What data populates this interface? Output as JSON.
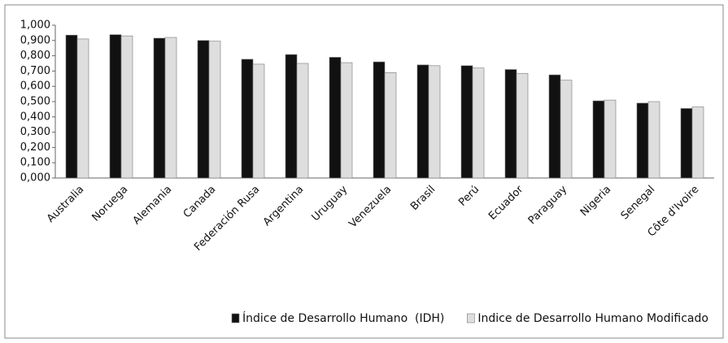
{
  "chart_data": {
    "type": "bar",
    "categories": [
      "Australia",
      "Noruega",
      "Alemania",
      "Canada",
      "Federación Rusa",
      "Argentina",
      "Uruguay",
      "Venezuela",
      "Brasil",
      "Perú",
      "Ecuador",
      "Paraguay",
      "Nigeria",
      "Senegal",
      "Côte d'Ivoire"
    ],
    "series": [
      {
        "name": "Índice de Desarrollo Humano  (IDH)",
        "color": "#111111",
        "values": [
          0.935,
          0.938,
          0.915,
          0.9,
          0.777,
          0.808,
          0.79,
          0.76,
          0.74,
          0.735,
          0.71,
          0.675,
          0.505,
          0.49,
          0.455
        ]
      },
      {
        "name": "Indice de Desarrollo Humano Modificado",
        "color": "#dedede",
        "values": [
          0.91,
          0.93,
          0.92,
          0.895,
          0.745,
          0.75,
          0.755,
          0.69,
          0.735,
          0.72,
          0.685,
          0.64,
          0.51,
          0.5,
          0.465
        ]
      }
    ],
    "ylim": [
      0,
      1
    ],
    "yticks": [
      {
        "value": 0,
        "label": "0,000"
      },
      {
        "value": 0.1,
        "label": "0,100"
      },
      {
        "value": 0.2,
        "label": "0,200"
      },
      {
        "value": 0.3,
        "label": "0,300"
      },
      {
        "value": 0.4,
        "label": "0,400"
      },
      {
        "value": 0.5,
        "label": "0,500"
      },
      {
        "value": 0.6,
        "label": "0,600"
      },
      {
        "value": 0.7,
        "label": "0,700"
      },
      {
        "value": 0.8,
        "label": "0,800"
      },
      {
        "value": 0.9,
        "label": "0,900"
      },
      {
        "value": 1,
        "label": "1,000"
      }
    ],
    "grid": false,
    "legend": "bottom"
  }
}
